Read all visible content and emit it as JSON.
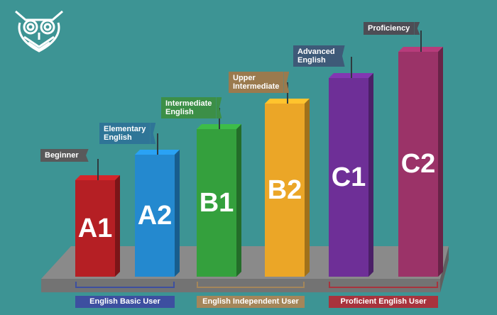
{
  "colors": {
    "background": "#3d9494",
    "platform": "#8a8a8a",
    "platform_front": "#737373"
  },
  "logo": {
    "icon": "owl-logo-icon"
  },
  "levels": [
    {
      "code": "A1",
      "flag": [
        "Beginner"
      ],
      "bar_color": "#b51f24",
      "flag_color": "#59595a"
    },
    {
      "code": "A2",
      "flag": [
        "Elementary",
        "English"
      ],
      "bar_color": "#2489cf",
      "flag_color": "#2f7597"
    },
    {
      "code": "B1",
      "flag": [
        "Intermediate",
        "English"
      ],
      "bar_color": "#34a03d",
      "flag_color": "#3c8f47"
    },
    {
      "code": "B2",
      "flag": [
        "Upper",
        "Intermediate"
      ],
      "bar_color": "#eba627",
      "flag_color": "#9a7a4e"
    },
    {
      "code": "C1",
      "flag": [
        "Advanced",
        "English"
      ],
      "bar_color": "#6e2f97",
      "flag_color": "#3e5a78"
    },
    {
      "code": "C2",
      "flag": [
        "Proficiency"
      ],
      "bar_color": "#9b3368",
      "flag_color": "#4d4d55"
    }
  ],
  "categories": [
    {
      "label": "English Basic User",
      "color": "#3d4fa0"
    },
    {
      "label": "English Independent User",
      "color": "#a4865a"
    },
    {
      "label": "Proficient English User",
      "color": "#a8333d"
    }
  ]
}
